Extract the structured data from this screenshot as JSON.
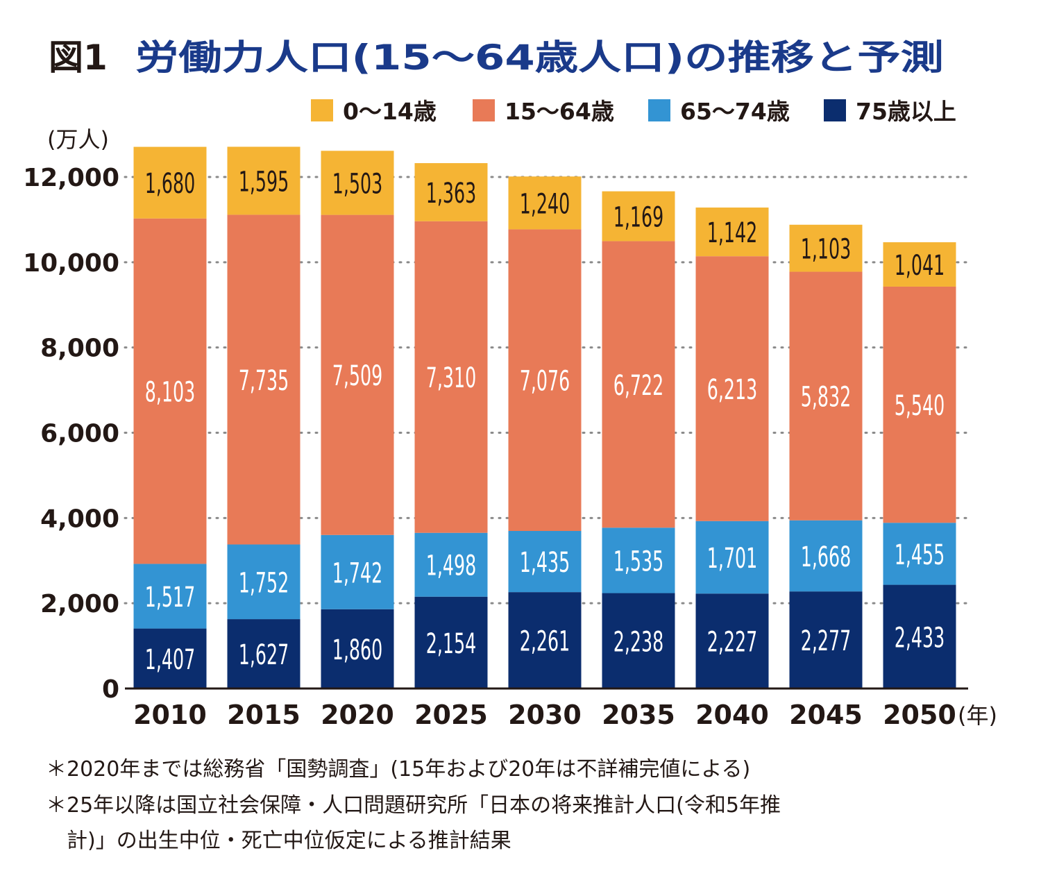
{
  "title": {
    "prefix": "図1",
    "main": "労働力人口(15〜64歳人口)の推移と予測"
  },
  "chart_data": {
    "type": "bar",
    "stacked": true,
    "title": "労働力人口(15〜64歳人口)の推移と予測",
    "ylabel": "(万人)",
    "xlabel": "(年)",
    "ylim": [
      0,
      12000
    ],
    "yticks": [
      0,
      2000,
      4000,
      6000,
      8000,
      10000,
      12000
    ],
    "ytick_labels": [
      "0",
      "2,000",
      "4,000",
      "6,000",
      "8,000",
      "10,000",
      "12,000"
    ],
    "grid": true,
    "legend_position": "top-right",
    "categories": [
      "2010",
      "2015",
      "2020",
      "2025",
      "2030",
      "2035",
      "2040",
      "2045",
      "2050"
    ],
    "series": [
      {
        "name": "75歳以上",
        "color": "#0b2d6e",
        "values": [
          1407,
          1627,
          1860,
          2154,
          2261,
          2238,
          2227,
          2277,
          2433
        ]
      },
      {
        "name": "65〜74歳",
        "color": "#3394d3",
        "values": [
          1517,
          1752,
          1742,
          1498,
          1435,
          1535,
          1701,
          1668,
          1455
        ]
      },
      {
        "name": "15〜64歳",
        "color": "#e87a57",
        "values": [
          8103,
          7735,
          7509,
          7310,
          7076,
          6722,
          6213,
          5832,
          5540
        ]
      },
      {
        "name": "0〜14歳",
        "color": "#f5b434",
        "values": [
          1680,
          1595,
          1503,
          1363,
          1240,
          1169,
          1142,
          1103,
          1041
        ]
      }
    ],
    "legend_order": [
      "0〜14歳",
      "15〜64歳",
      "65〜74歳",
      "75歳以上"
    ]
  },
  "footnotes": [
    "＊2020年までは総務省「国勢調査」(15年および20年は不詳補完値による)",
    "＊25年以降は国立社会保障・人口問題研究所「日本の将来推計人口(令和5年推",
    "　計)」の出生中位・死亡中位仮定による推計結果"
  ],
  "colors": {
    "title": "#1a3a8a",
    "text": "#231815",
    "grid": "#888888"
  }
}
